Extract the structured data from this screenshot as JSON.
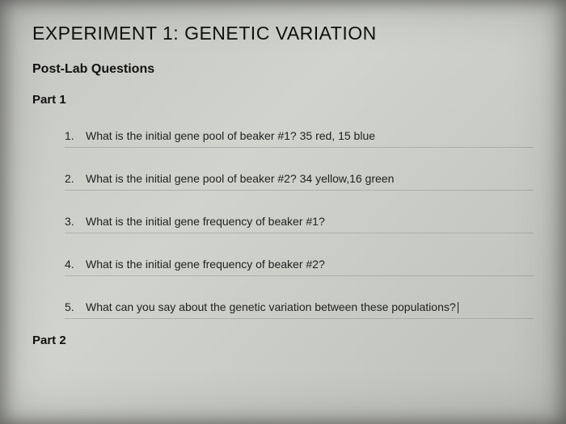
{
  "title": "EXPERIMENT 1: GENETIC VARIATION",
  "subtitle": "Post-Lab Questions",
  "part1_label": "Part 1",
  "part2_label": "Part 2",
  "questions": [
    {
      "num": "1.",
      "text": "What is the initial gene pool of beaker #1? 35 red, 15 blue"
    },
    {
      "num": "2.",
      "text": "What is the initial gene pool of beaker #2? 34 yellow,16 green"
    },
    {
      "num": "3.",
      "text": "What is the initial gene frequency of beaker #1?"
    },
    {
      "num": "4.",
      "text": "What is the initial gene frequency of beaker #2?"
    },
    {
      "num": "5.",
      "text": "What can you say about the genetic variation between these populations?"
    }
  ],
  "colors": {
    "text": "#1a1a1a",
    "background_start": "#c8cac5",
    "background_end": "#c0c2bc",
    "divider": "rgba(120,120,120,0.35)"
  },
  "typography": {
    "title_fontsize": 23,
    "subtitle_fontsize": 16,
    "part_fontsize": 15,
    "body_fontsize": 14,
    "font_family": "Arial"
  }
}
